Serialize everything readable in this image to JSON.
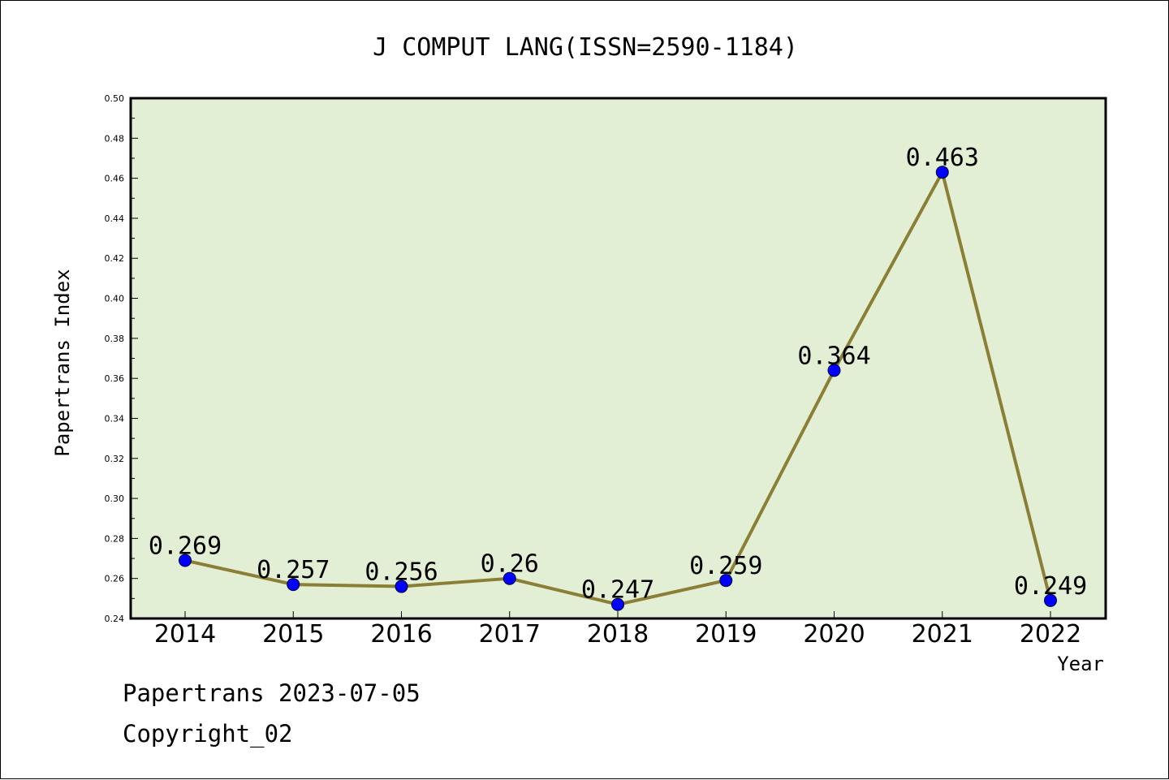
{
  "chart_data": {
    "type": "line",
    "title": "J COMPUT LANG(ISSN=2590-1184)",
    "xlabel": "Year",
    "ylabel": "Papertrans Index",
    "categories": [
      "2014",
      "2015",
      "2016",
      "2017",
      "2018",
      "2019",
      "2020",
      "2021",
      "2022"
    ],
    "values": [
      0.269,
      0.257,
      0.256,
      0.26,
      0.247,
      0.259,
      0.364,
      0.463,
      0.249
    ],
    "data_labels": [
      "0.269",
      "0.257",
      "0.256",
      "0.26",
      "0.247",
      "0.259",
      "0.364",
      "0.463",
      "0.249"
    ],
    "ylim": [
      0.24,
      0.5
    ],
    "yticks": [
      "0.24",
      "0.26",
      "0.28",
      "0.30",
      "0.32",
      "0.34",
      "0.36",
      "0.38",
      "0.40",
      "0.42",
      "0.44",
      "0.46",
      "0.48",
      "0.50"
    ],
    "grid": false,
    "legend": "none",
    "colors": {
      "plot_background": "#e2efd5",
      "line": "#8b7f36",
      "marker": "#0000ff"
    }
  },
  "footer": {
    "line1": "Papertrans 2023-07-05",
    "line2": "Copyright_02"
  }
}
